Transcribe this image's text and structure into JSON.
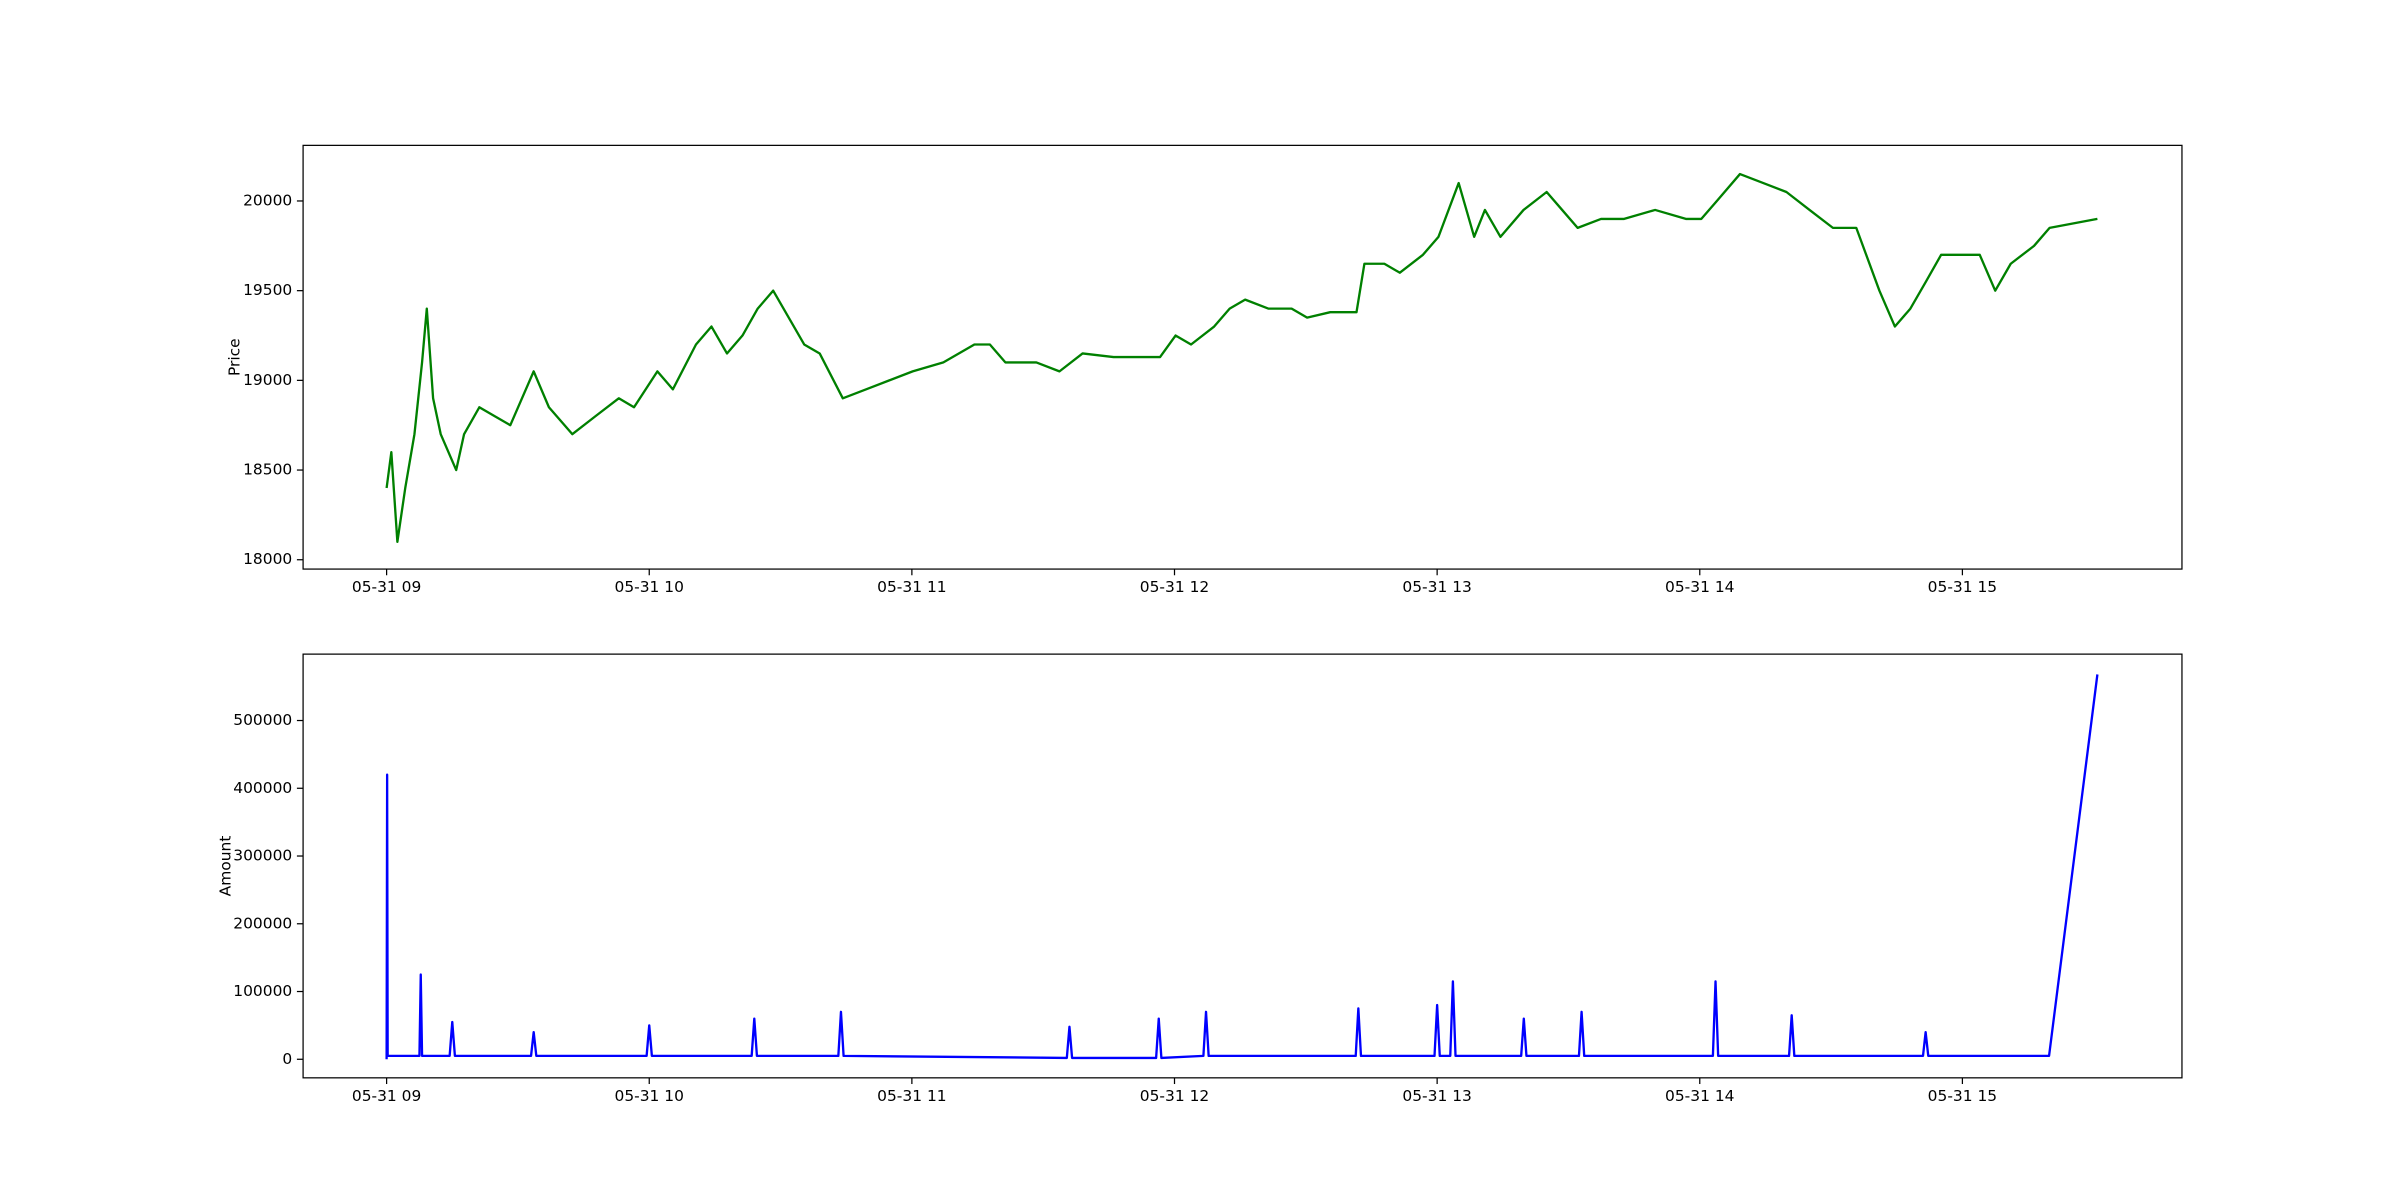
{
  "chart_data": [
    {
      "type": "line",
      "ylabel": "Price",
      "x": [
        9.0,
        9.018,
        9.041,
        9.071,
        9.106,
        9.135,
        9.153,
        9.177,
        9.206,
        9.265,
        9.295,
        9.353,
        9.412,
        9.471,
        9.56,
        9.618,
        9.707,
        9.795,
        9.884,
        9.942,
        10.031,
        10.09,
        10.178,
        10.237,
        10.296,
        10.355,
        10.413,
        10.472,
        10.531,
        10.59,
        10.649,
        10.737,
        10.826,
        10.914,
        11.003,
        11.12,
        11.238,
        11.297,
        11.356,
        11.474,
        11.562,
        11.65,
        11.768,
        11.945,
        12.004,
        12.063,
        12.151,
        12.21,
        12.269,
        12.357,
        12.446,
        12.505,
        12.593,
        12.693,
        12.723,
        12.799,
        12.858,
        12.946,
        13.005,
        13.082,
        13.141,
        13.182,
        13.241,
        13.329,
        13.417,
        13.476,
        13.535,
        13.624,
        13.712,
        13.83,
        13.947,
        14.006,
        14.065,
        14.153,
        14.242,
        14.33,
        14.418,
        14.507,
        14.596,
        14.684,
        14.743,
        14.802,
        14.861,
        14.919,
        14.978,
        15.066,
        15.125,
        15.184,
        15.273,
        15.332,
        15.514
      ],
      "series": [
        {
          "color": "#008000",
          "values": [
            18400,
            18600,
            18100,
            18400,
            18700,
            19100,
            19400,
            18900,
            18700,
            18500,
            18700,
            18850,
            18800,
            18750,
            19050,
            18850,
            18700,
            18800,
            18900,
            18850,
            19050,
            18950,
            19200,
            19300,
            19150,
            19250,
            19400,
            19500,
            19350,
            19200,
            19150,
            18900,
            18950,
            19000,
            19050,
            19100,
            19200,
            19200,
            19100,
            19100,
            19050,
            19150,
            19130,
            19130,
            19250,
            19200,
            19300,
            19400,
            19450,
            19400,
            19400,
            19350,
            19380,
            19380,
            19650,
            19650,
            19600,
            19700,
            19800,
            20100,
            19800,
            19950,
            19800,
            19950,
            20050,
            19950,
            19850,
            19900,
            19900,
            19950,
            19900,
            19900,
            20000,
            20150,
            20100,
            20050,
            19950,
            19850,
            19850,
            19500,
            19300,
            19400,
            19550,
            19700,
            19700,
            19700,
            19500,
            19650,
            19750,
            19850,
            19900
          ]
        }
      ],
      "xlim": [
        8.682,
        15.836
      ],
      "ylim": [
        17948,
        20310
      ],
      "xticks": [
        {
          "value": 9,
          "label": "05-31 09"
        },
        {
          "value": 10,
          "label": "05-31 10"
        },
        {
          "value": 11,
          "label": "05-31 11"
        },
        {
          "value": 12,
          "label": "05-31 12"
        },
        {
          "value": 13,
          "label": "05-31 13"
        },
        {
          "value": 14,
          "label": "05-31 14"
        },
        {
          "value": 15,
          "label": "05-31 15"
        }
      ],
      "yticks": [
        18000,
        18500,
        19000,
        19500,
        20000
      ]
    },
    {
      "type": "line",
      "ylabel": "Amount",
      "x": [
        9.0,
        9.002,
        9.004,
        9.125,
        9.13,
        9.135,
        9.24,
        9.25,
        9.26,
        9.55,
        9.56,
        9.57,
        9.99,
        10.0,
        10.01,
        10.39,
        10.4,
        10.41,
        10.72,
        10.73,
        10.74,
        11.59,
        11.6,
        11.61,
        11.93,
        11.94,
        11.95,
        12.11,
        12.12,
        12.13,
        12.69,
        12.7,
        12.71,
        12.99,
        13.0,
        13.01,
        13.05,
        13.06,
        13.07,
        13.32,
        13.33,
        13.34,
        13.54,
        13.55,
        13.56,
        14.05,
        14.06,
        14.07,
        14.34,
        14.35,
        14.36,
        14.85,
        14.86,
        14.87,
        15.33,
        15.514
      ],
      "series": [
        {
          "color": "#0000ff",
          "values": [
            0,
            420000,
            5000,
            5000,
            125000,
            5000,
            5000,
            55000,
            5000,
            5000,
            40000,
            5000,
            5000,
            50000,
            5000,
            5000,
            60000,
            5000,
            5000,
            70000,
            5000,
            2000,
            48000,
            2000,
            2000,
            60000,
            2000,
            5000,
            70000,
            5000,
            5000,
            75000,
            5000,
            5000,
            80000,
            5000,
            5000,
            115000,
            5000,
            5000,
            60000,
            5000,
            5000,
            70000,
            5000,
            5000,
            115000,
            5000,
            5000,
            65000,
            5000,
            5000,
            40000,
            5000,
            5000,
            568000
          ]
        }
      ],
      "xlim": [
        8.682,
        15.836
      ],
      "ylim": [
        -27400,
        598000
      ],
      "xticks": [
        {
          "value": 9,
          "label": "05-31 09"
        },
        {
          "value": 10,
          "label": "05-31 10"
        },
        {
          "value": 11,
          "label": "05-31 11"
        },
        {
          "value": 12,
          "label": "05-31 12"
        },
        {
          "value": 13,
          "label": "05-31 13"
        },
        {
          "value": 14,
          "label": "05-31 14"
        },
        {
          "value": 15,
          "label": "05-31 15"
        }
      ],
      "yticks": [
        0,
        100000,
        200000,
        300000,
        400000,
        500000
      ]
    }
  ]
}
